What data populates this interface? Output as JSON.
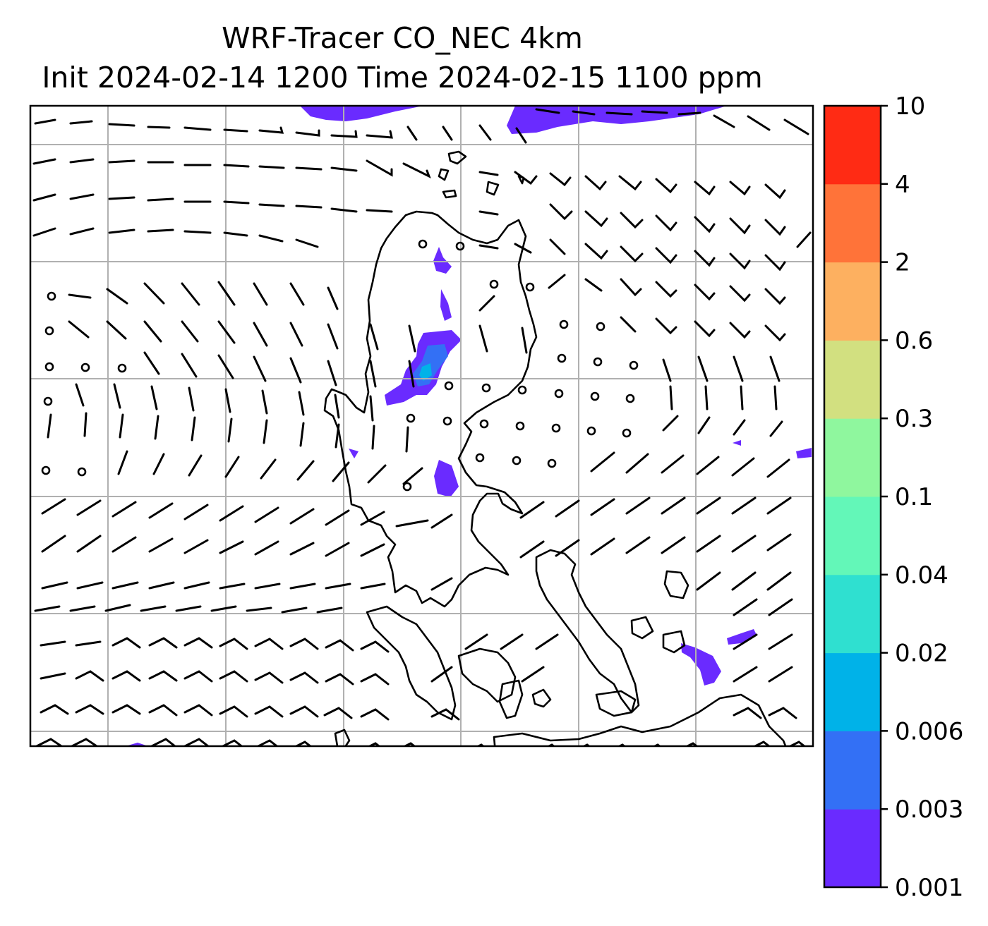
{
  "title": {
    "line1": "WRF-Tracer CO_NEC 4km",
    "line2": "Init 2024-02-14 1200 Time 2024-02-15 1100 ppm"
  },
  "colorbar": {
    "tick_labels": [
      "0.001",
      "0.003",
      "0.006",
      "0.02",
      "0.04",
      "0.1",
      "0.3",
      "0.6",
      "2",
      "4",
      "10"
    ],
    "colors": [
      "#6a2bff",
      "#3370f5",
      "#00b2e8",
      "#2fe0d0",
      "#63f7b8",
      "#8ff79e",
      "#d2e080",
      "#fdb060",
      "#ff7339",
      "#ff2b14"
    ]
  },
  "map": {
    "gridlines": "on",
    "wind_barbs": "on",
    "calm_markers": "circle"
  }
}
